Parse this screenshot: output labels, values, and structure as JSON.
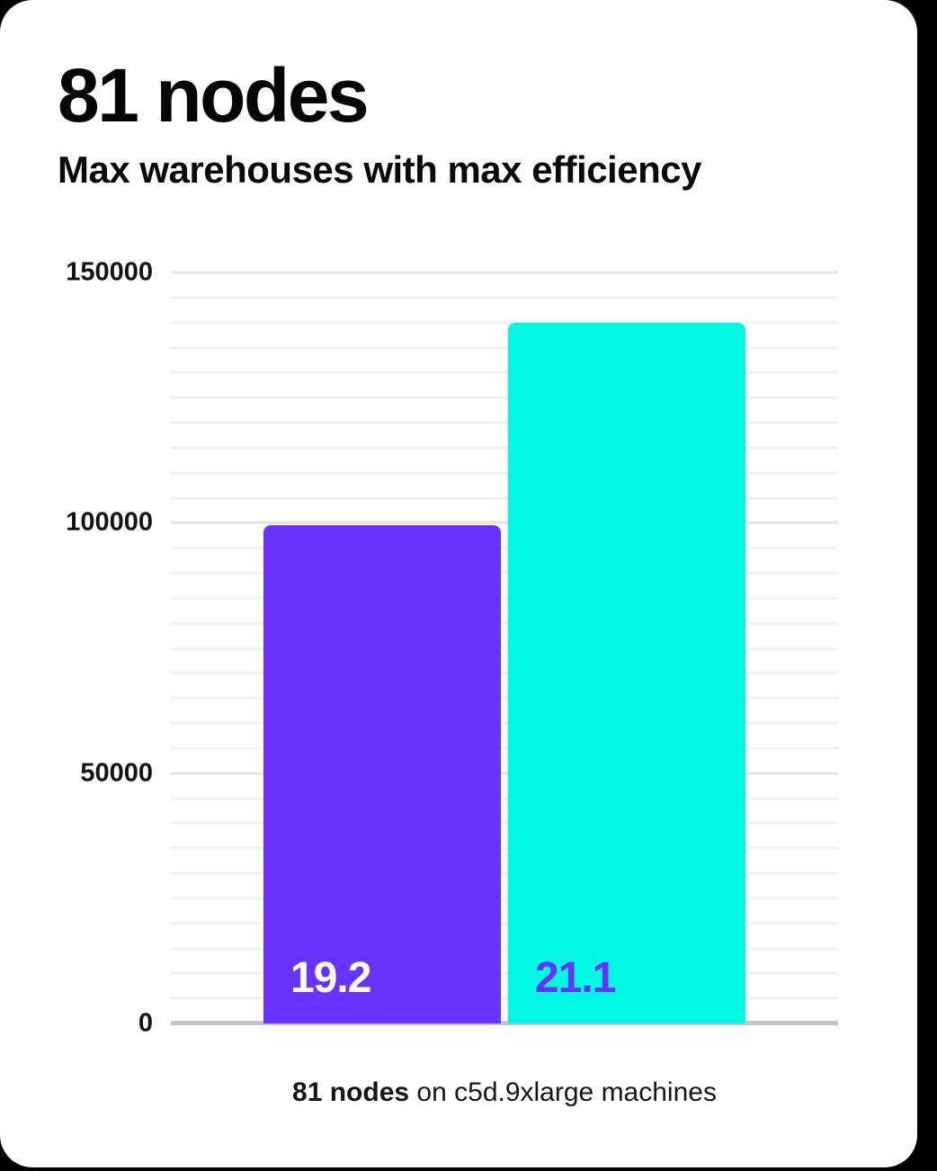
{
  "header": {
    "title": "81 nodes",
    "subtitle": "Max warehouses with max efficiency"
  },
  "caption": {
    "bold": "81 nodes",
    "rest": " on c5d.9xlarge machines"
  },
  "chart_data": {
    "type": "bar",
    "title": "81 nodes",
    "subtitle": "Max warehouses with max efficiency",
    "caption": "81 nodes on c5d.9xlarge machines",
    "categories": [
      "19.2",
      "21.1"
    ],
    "series_name": "Max warehouses with max efficiency",
    "values": [
      99500,
      140000
    ],
    "bar_colors": [
      "#6933ff",
      "#00f8e4"
    ],
    "bar_label_colors": [
      "#ffffff",
      "#6933ff"
    ],
    "bar_labels_inside": true,
    "ylim": [
      0,
      150000
    ],
    "yticks": [
      0,
      50000,
      100000,
      150000
    ],
    "minor_grid_step": 5000,
    "major_grid_step": 50000,
    "grid": true,
    "legend": false,
    "xlabel": "",
    "ylabel": ""
  },
  "colors": {
    "background": "#000000",
    "card": "#ffffff",
    "text": "#0a0a0a",
    "grid_minor": "#f1f1f1",
    "grid_major": "#e3e3e3",
    "baseline": "#c4c4c4",
    "accent_purple": "#6933ff",
    "accent_cyan": "#00f8e4"
  }
}
